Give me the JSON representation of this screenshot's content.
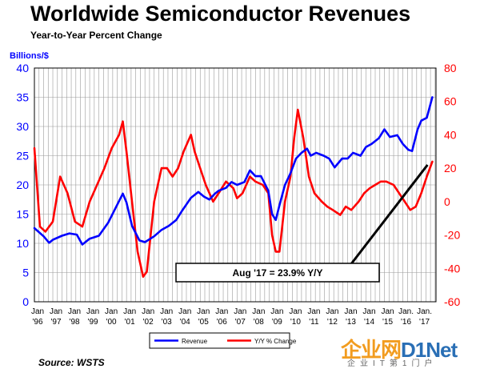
{
  "chart_data": {
    "type": "line",
    "title": "Worldwide Semiconductor Revenues",
    "subtitle": "Year-to-Year Percent Change",
    "ylabel": "Billions/$",
    "ylim": [
      0,
      40
    ],
    "y2lim": [
      -60,
      80
    ],
    "yticks": [
      "0",
      "5",
      "10",
      "15",
      "20",
      "25",
      "30",
      "35",
      "40"
    ],
    "y2ticks": [
      "-60",
      "-40",
      "-20",
      "0",
      "20",
      "40",
      "60",
      "80"
    ],
    "xticks": [
      {
        "top": "Jan",
        "bottom": "'96"
      },
      {
        "top": "Jan",
        "bottom": "'97"
      },
      {
        "top": "Jan",
        "bottom": "'98"
      },
      {
        "top": "Jan",
        "bottom": "'99"
      },
      {
        "top": "Jan",
        "bottom": "'00"
      },
      {
        "top": "Jan",
        "bottom": "'01"
      },
      {
        "top": "Jan",
        "bottom": "'02"
      },
      {
        "top": "Jan",
        "bottom": "'03"
      },
      {
        "top": "Jan",
        "bottom": "'04"
      },
      {
        "top": "Jan",
        "bottom": "'05"
      },
      {
        "top": "Jan",
        "bottom": "'06"
      },
      {
        "top": "Jan",
        "bottom": "'07"
      },
      {
        "top": "Jan",
        "bottom": "'08"
      },
      {
        "top": "Jan",
        "bottom": "'09"
      },
      {
        "top": "Jan",
        "bottom": "'10"
      },
      {
        "top": "Jan",
        "bottom": "'11"
      },
      {
        "top": "Jan",
        "bottom": "'12"
      },
      {
        "top": "Jan",
        "bottom": "'13"
      },
      {
        "top": "Jan",
        "bottom": "'14"
      },
      {
        "top": "Jan",
        "bottom": "'15"
      },
      {
        "top": "Jan.",
        "bottom": "'16"
      },
      {
        "top": "Jan.",
        "bottom": "'17"
      }
    ],
    "series": [
      {
        "name": "Revenue",
        "axis": "left",
        "color": "#0000ff",
        "x": [
          1996,
          1996.5,
          1996.8,
          1997,
          1997.5,
          1997.9,
          1998.3,
          1998.6,
          1999,
          1999.5,
          2000,
          2000.4,
          2000.8,
          2001,
          2001.3,
          2001.7,
          2002,
          2002.5,
          2002.9,
          2003.3,
          2003.7,
          2004,
          2004.5,
          2004.9,
          2005.2,
          2005.5,
          2005.8,
          2006,
          2006.4,
          2006.7,
          2007,
          2007.4,
          2007.7,
          2008,
          2008.3,
          2008.7,
          2008.9,
          2009.1,
          2009.3,
          2009.6,
          2009.9,
          2010.2,
          2010.5,
          2010.8,
          2011,
          2011.3,
          2011.7,
          2012,
          2012.3,
          2012.7,
          2013,
          2013.3,
          2013.7,
          2014,
          2014.3,
          2014.7,
          2015,
          2015.3,
          2015.7,
          2016,
          2016.3,
          2016.5,
          2016.8,
          2017,
          2017.3,
          2017.6
        ],
        "y": [
          12.6,
          11.2,
          10.1,
          10.6,
          11.3,
          11.7,
          11.5,
          9.8,
          10.8,
          11.3,
          13.5,
          16,
          18.5,
          17,
          13,
          10.5,
          10.2,
          11.2,
          12.3,
          13,
          14,
          15.5,
          17.8,
          18.8,
          18,
          17.5,
          18.5,
          19,
          19.5,
          20.5,
          20,
          20.5,
          22.5,
          21.5,
          21.5,
          19,
          15,
          14,
          16.5,
          20,
          22,
          24.5,
          25.5,
          26.2,
          25,
          25.5,
          25,
          24.5,
          23,
          24.5,
          24.5,
          25.5,
          25,
          26.5,
          27,
          28,
          29.5,
          28.2,
          28.5,
          27,
          26,
          25.8,
          29.5,
          31,
          31.5,
          35
        ]
      },
      {
        "name": "Y/Y % Change",
        "axis": "right",
        "color": "#ff0000",
        "x": [
          1996,
          1996.3,
          1996.6,
          1997,
          1997.4,
          1997.8,
          1998.2,
          1998.6,
          1999,
          1999.4,
          1999.8,
          2000.2,
          2000.6,
          2000.8,
          2001,
          2001.3,
          2001.6,
          2001.9,
          2002.1,
          2002.5,
          2002.9,
          2003.2,
          2003.5,
          2003.8,
          2004.1,
          2004.5,
          2004.7,
          2005,
          2005.3,
          2005.7,
          2006,
          2006.4,
          2006.8,
          2007,
          2007.3,
          2007.7,
          2008,
          2008.4,
          2008.7,
          2008.9,
          2009.1,
          2009.3,
          2009.6,
          2009.9,
          2010.1,
          2010.3,
          2010.6,
          2010.9,
          2011.2,
          2011.6,
          2011.9,
          2012.2,
          2012.6,
          2012.9,
          2013.2,
          2013.6,
          2013.9,
          2014.2,
          2014.5,
          2014.8,
          2015.1,
          2015.5,
          2015.8,
          2016.1,
          2016.4,
          2016.7,
          2017,
          2017.3,
          2017.6
        ],
        "y": [
          32,
          -15,
          -18,
          -12,
          15,
          5,
          -12,
          -15,
          0,
          10,
          20,
          32,
          40,
          48,
          30,
          0,
          -30,
          -45,
          -42,
          0,
          20,
          20,
          15,
          20,
          30,
          40,
          30,
          20,
          10,
          0,
          5,
          12,
          8,
          2,
          5,
          15,
          12,
          10,
          5,
          -20,
          -30,
          -30,
          0,
          15,
          38,
          55,
          38,
          15,
          5,
          0,
          -3,
          -5,
          -8,
          -3,
          -5,
          0,
          5,
          8,
          10,
          12,
          12,
          10,
          5,
          0,
          -5,
          -3,
          5,
          15,
          23.9
        ]
      }
    ],
    "annotation": "Aug '17 = 23.9% Y/Y",
    "legend": [
      "Revenue",
      "Y/Y % Change"
    ],
    "legend_position": "bottom",
    "grid": true,
    "source": "Source: WSTS"
  },
  "watermark": {
    "cn_text": "企业网",
    "latin_text": "D1Net",
    "sub_text": "企业IT第1门户"
  }
}
